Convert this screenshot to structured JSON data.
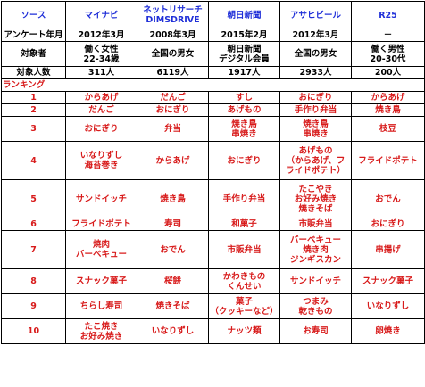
{
  "header": {
    "source_label": "ソース",
    "sources": [
      "マイナビ",
      "ネットリサーチ\nDIMSDRIVE",
      "朝日新聞",
      "アサヒビール",
      "R25"
    ]
  },
  "meta": {
    "survey_date": {
      "label": "アンケート年月",
      "values": [
        "2012年3月",
        "2008年3月",
        "2015年2月",
        "2012年3月",
        "－"
      ]
    },
    "target": {
      "label": "対象者",
      "values": [
        "働く女性\n22-34歳",
        "全国の男女",
        "朝日新聞\nデジタル会員",
        "全国の男女",
        "働く男性\n20-30代"
      ]
    },
    "count": {
      "label": "対象人数",
      "values": [
        "311人",
        "6119人",
        "1917人",
        "2933人",
        "200人"
      ]
    }
  },
  "ranking": {
    "title": "ランキング",
    "rows": [
      {
        "rank": "1",
        "items": [
          "からあげ",
          "だんご",
          "すし",
          "おにぎり",
          "からあげ"
        ]
      },
      {
        "rank": "2",
        "items": [
          "だんご",
          "おにぎり",
          "あげもの",
          "手作り弁当",
          "焼き鳥"
        ]
      },
      {
        "rank": "3",
        "items": [
          "おにぎり",
          "弁当",
          "焼き鳥\n串焼き",
          "焼き鳥\n串焼き",
          "枝豆"
        ]
      },
      {
        "rank": "4",
        "items": [
          "いなりずし\n海苔巻き",
          "からあげ",
          "おにぎり",
          "あげもの\n（からあげ、フ\nライドポテト）",
          "フライドポテト"
        ]
      },
      {
        "rank": "5",
        "items": [
          "サンドイッチ",
          "焼き鳥",
          "手作り弁当",
          "たこやき\nお好み焼き\n焼きそば",
          "おでん"
        ]
      },
      {
        "rank": "6",
        "items": [
          "フライドポテト",
          "寿司",
          "和菓子",
          "市販弁当",
          "おにぎり"
        ]
      },
      {
        "rank": "7",
        "items": [
          "焼肉\nバーベキュー",
          "おでん",
          "市販弁当",
          "バーベキュー\n焼き肉\nジンギスカン",
          "串揚げ"
        ]
      },
      {
        "rank": "8",
        "items": [
          "スナック菓子",
          "桜餅",
          "かわきもの\nくんせい",
          "サンドイッチ",
          "スナック菓子"
        ]
      },
      {
        "rank": "9",
        "items": [
          "ちらし寿司",
          "焼きそば",
          "菓子\n（クッキーなど）",
          "つまみ\n乾きもの",
          "いなりずし"
        ]
      },
      {
        "rank": "10",
        "items": [
          "たこ焼き\nお好み焼き",
          "いなりずし",
          "ナッツ類",
          "お寿司",
          "卵焼き"
        ]
      }
    ]
  },
  "colors": {
    "header_text": "#1f2fd8",
    "ranking_text": "#d81b1b",
    "border": "#000000"
  }
}
